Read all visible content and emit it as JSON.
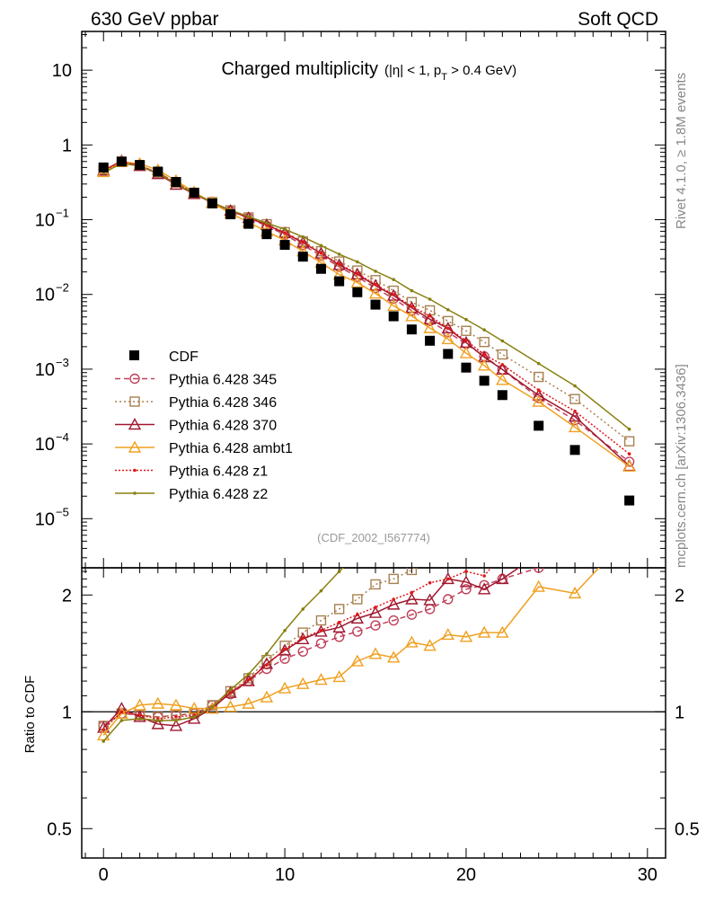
{
  "header": {
    "left": "630 GeV ppbar",
    "right": "Soft QCD"
  },
  "side": {
    "top": "Rivet 4.1.0, ≥ 1.8M events",
    "bottom": "mcplots.cern.ch [arXiv:1306.3436]"
  },
  "chart_data": {
    "type": "scatter",
    "title": "Charged multiplicity",
    "title_sub": {
      "pre": "(|η| < 1, p",
      "sub": "T",
      "post": " > 0.4 GeV)"
    },
    "analysis_label": "(CDF_2002_I567774)",
    "xlim": [
      -1.2,
      31
    ],
    "main_ylim": [
      2.2e-06,
      33
    ],
    "main_yscale": "log",
    "main_yticks": [
      {
        "v": 10,
        "label": "10",
        "exp": ""
      },
      {
        "v": 1,
        "label": "1",
        "exp": ""
      },
      {
        "v": 0.1,
        "label": "10",
        "exp": "−1"
      },
      {
        "v": 0.01,
        "label": "10",
        "exp": "−2"
      },
      {
        "v": 0.001,
        "label": "10",
        "exp": "−3"
      },
      {
        "v": 0.0001,
        "label": "10",
        "exp": "−4"
      },
      {
        "v": 1e-05,
        "label": "10",
        "exp": "−5"
      }
    ],
    "ratio_ylabel": "Ratio to CDF",
    "ratio_ylim": [
      0.42,
      2.35
    ],
    "ratio_yscale": "log",
    "ratio_yticks": [
      {
        "v": 2,
        "label": "2"
      },
      {
        "v": 1,
        "label": "1"
      },
      {
        "v": 0.5,
        "label": "0.5"
      }
    ],
    "xticks": [
      {
        "v": 0,
        "label": "0"
      },
      {
        "v": 10,
        "label": "10"
      },
      {
        "v": 20,
        "label": "20"
      },
      {
        "v": 30,
        "label": "30"
      }
    ],
    "x": [
      0,
      1,
      2,
      3,
      4,
      5,
      6,
      7,
      8,
      9,
      10,
      11,
      12,
      13,
      14,
      15,
      16,
      17,
      18,
      19,
      20,
      21,
      22,
      24,
      26,
      29
    ],
    "cdf": {
      "name": "CDF",
      "values": [
        0.5,
        0.6,
        0.54,
        0.44,
        0.32,
        0.23,
        0.165,
        0.118,
        0.088,
        0.064,
        0.046,
        0.032,
        0.022,
        0.015,
        0.0107,
        0.0073,
        0.0051,
        0.0034,
        0.0024,
        0.0016,
        0.00105,
        0.0007,
        0.00045,
        0.000175,
        8.3e-05,
        1.75e-05
      ]
    },
    "series": [
      {
        "name": "Pythia 6.428 345",
        "color": "#c0405a",
        "dash": "6,4",
        "marker": "circle",
        "ratio": [
          0.92,
          0.99,
          0.98,
          0.97,
          0.98,
          0.99,
          1.04,
          1.11,
          1.2,
          1.29,
          1.37,
          1.43,
          1.5,
          1.56,
          1.61,
          1.67,
          1.72,
          1.78,
          1.84,
          1.95,
          2.07,
          2.12,
          2.2,
          2.35,
          2.5,
          3.3
        ]
      },
      {
        "name": "Pythia 6.428 346",
        "color": "#a88050",
        "dash": "2,3",
        "marker": "square",
        "ratio": [
          0.92,
          0.99,
          0.98,
          0.97,
          0.98,
          0.99,
          1.04,
          1.13,
          1.22,
          1.36,
          1.48,
          1.6,
          1.72,
          1.84,
          1.95,
          2.13,
          2.2,
          2.32,
          2.55,
          2.75,
          3.1,
          3.3,
          3.5,
          4.5,
          4.8,
          6.2
        ]
      },
      {
        "name": "Pythia 6.428 370",
        "color": "#a01830",
        "dash": "",
        "marker": "triangle",
        "ratio": [
          0.91,
          1.02,
          0.97,
          0.93,
          0.92,
          0.96,
          1.02,
          1.12,
          1.2,
          1.33,
          1.44,
          1.54,
          1.61,
          1.65,
          1.74,
          1.8,
          1.89,
          1.95,
          1.94,
          2.2,
          2.16,
          2.07,
          2.2,
          2.55,
          2.8,
          2.9
        ]
      },
      {
        "name": "Pythia 6.428 ambt1",
        "color": "#f0a020",
        "dash": "",
        "marker": "triangle",
        "ratio": [
          0.87,
          0.99,
          1.04,
          1.05,
          1.04,
          1.02,
          1.02,
          1.03,
          1.05,
          1.09,
          1.15,
          1.18,
          1.21,
          1.23,
          1.35,
          1.41,
          1.38,
          1.51,
          1.48,
          1.58,
          1.56,
          1.6,
          1.6,
          2.1,
          2.02,
          2.85
        ]
      },
      {
        "name": "Pythia 6.428 z1",
        "color": "#e01818",
        "dash": "2,2",
        "marker": "dot",
        "ratio": [
          0.9,
          1.0,
          0.98,
          0.96,
          0.97,
          0.98,
          1.03,
          1.12,
          1.21,
          1.32,
          1.45,
          1.55,
          1.62,
          1.7,
          1.78,
          1.86,
          1.95,
          2.03,
          2.15,
          2.2,
          2.3,
          2.24,
          2.55,
          3.0,
          3.3,
          4.2
        ]
      },
      {
        "name": "Pythia 6.428 z2",
        "color": "#888010",
        "dash": "",
        "marker": "dot",
        "ratio": [
          0.84,
          0.95,
          0.96,
          0.95,
          0.95,
          0.97,
          1.03,
          1.14,
          1.25,
          1.41,
          1.62,
          1.84,
          2.05,
          2.3,
          2.55,
          2.8,
          3.1,
          3.3,
          3.6,
          3.9,
          4.4,
          4.8,
          5.3,
          6.8,
          7.2,
          9.0
        ]
      }
    ]
  }
}
